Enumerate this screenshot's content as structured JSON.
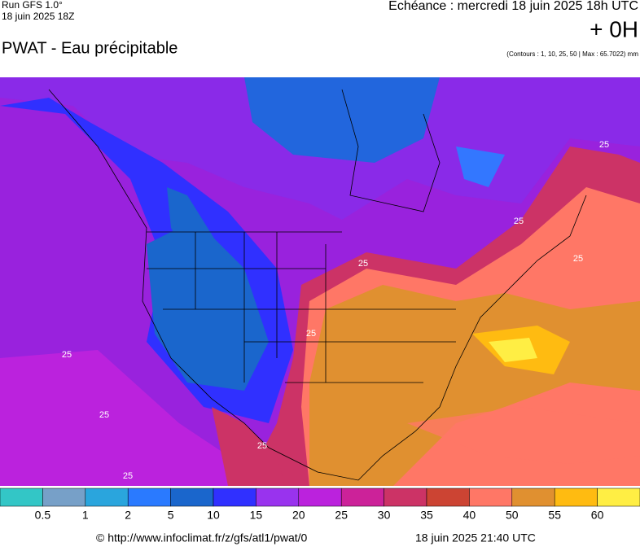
{
  "header": {
    "run": "Run GFS 1.0°",
    "run_date": "18 juin 2025 18Z",
    "title": "PWAT - Eau précipitable",
    "forecast": "Echéance : mercredi 18 juin 2025 18h UTC",
    "lead": "+ 0H",
    "contours": "(Contours : 1, 10, 25, 50 | Max : 65.7022) mm"
  },
  "map": {
    "contour_labels": [
      "25",
      "25",
      "25",
      "25",
      "25",
      "25",
      "25",
      "25",
      "25"
    ]
  },
  "legend": {
    "colors": [
      "#33c6c6",
      "#77a0c8",
      "#2aa5dd",
      "#2a7aff",
      "#1a66cc",
      "#3030ff",
      "#9933ee",
      "#bb22dd",
      "#cc2299",
      "#cc3366",
      "#cc4433",
      "#ff7766",
      "#e09030",
      "#ffbb11",
      "#ffee44"
    ],
    "labels": [
      "0.5",
      "1",
      "2",
      "5",
      "10",
      "15",
      "20",
      "25",
      "30",
      "35",
      "40",
      "50",
      "55",
      "60"
    ]
  },
  "footer": {
    "url": "© http://www.infoclimat.fr/z/gfs/atl1/pwat/0",
    "timestamp": "18 juin 2025 21:40 UTC"
  }
}
